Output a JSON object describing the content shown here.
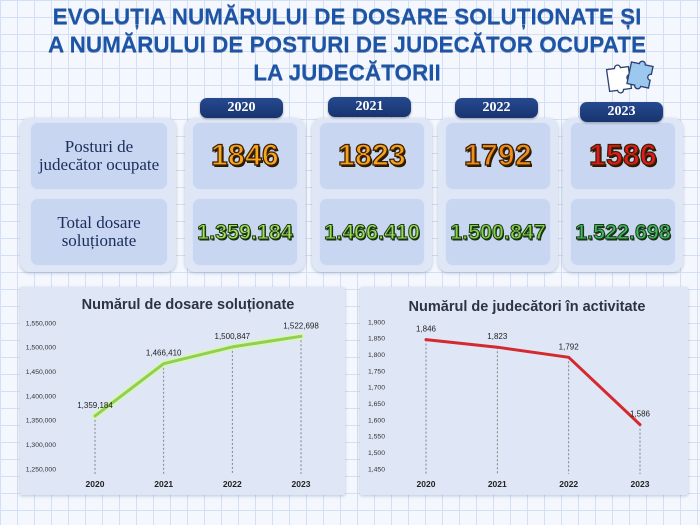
{
  "title": {
    "lines": [
      "EVOLUȚIA NUMĂRULUI DE DOSARE SOLUȚIONATE ȘI",
      "A NUMĂRULUI DE POSTURI DE JUDECĂTOR OCUPATE",
      "LA JUDECĂTORII"
    ],
    "color": "#1c54a6"
  },
  "logo": {
    "icon": "puzzle-icon"
  },
  "table": {
    "row_labels": [
      [
        "Posturi de",
        "judecător ocupate"
      ],
      [
        "Total dosare",
        "soluționate"
      ]
    ],
    "columns": [
      {
        "year": "2020",
        "judges": "1846",
        "cases": "1.359.184",
        "judges_color": "#f9a51e",
        "cases_color": "#a5e05a"
      },
      {
        "year": "2021",
        "judges": "1823",
        "cases": "1.466.410",
        "judges_color": "#f9a11b",
        "cases_color": "#98dc55"
      },
      {
        "year": "2022",
        "judges": "1792",
        "cases": "1.500.847",
        "judges_color": "#f28c1d",
        "cases_color": "#84d34c"
      },
      {
        "year": "2023",
        "judges": "1586",
        "cases": "1.522.698",
        "judges_color": "#e3191f",
        "cases_color": "#3fb86a"
      }
    ]
  },
  "chart_data": [
    {
      "type": "line",
      "title": "Numărul de dosare soluționate",
      "x": [
        "2020",
        "2021",
        "2022",
        "2023"
      ],
      "series": [
        {
          "values": [
            1359184,
            1466410,
            1500847,
            1522698
          ],
          "labels": [
            "1,359,184",
            "1,466,410",
            "1,500,847",
            "1,522,698"
          ],
          "color": "#8fd14f"
        }
      ],
      "ylim": [
        1250000,
        1550000
      ],
      "yticks": [
        1250000,
        1300000,
        1350000,
        1400000,
        1450000,
        1500000,
        1550000
      ],
      "ytick_labels": [
        "1,250,000",
        "1,300,000",
        "1,350,000",
        "1,400,000",
        "1,450,000",
        "1,500,000",
        "1,550,000"
      ],
      "grid": false,
      "legend": false,
      "drop_lines": true,
      "markers": false
    },
    {
      "type": "line",
      "title": "Numărul de judecători în activitate",
      "x": [
        "2020",
        "2021",
        "2022",
        "2023"
      ],
      "series": [
        {
          "values": [
            1846,
            1823,
            1792,
            1586
          ],
          "labels": [
            "1,846",
            "1,823",
            "1,792",
            "1,586"
          ],
          "color": "#d42a2f"
        }
      ],
      "ylim": [
        1450,
        1900
      ],
      "yticks": [
        1450,
        1500,
        1550,
        1600,
        1650,
        1700,
        1750,
        1800,
        1850,
        1900
      ],
      "ytick_labels": [
        "1,450",
        "1,500",
        "1,550",
        "1,600",
        "1,650",
        "1,700",
        "1,750",
        "1,800",
        "1,850",
        "1,900"
      ],
      "grid": false,
      "legend": false,
      "drop_lines": true,
      "markers": false
    }
  ]
}
